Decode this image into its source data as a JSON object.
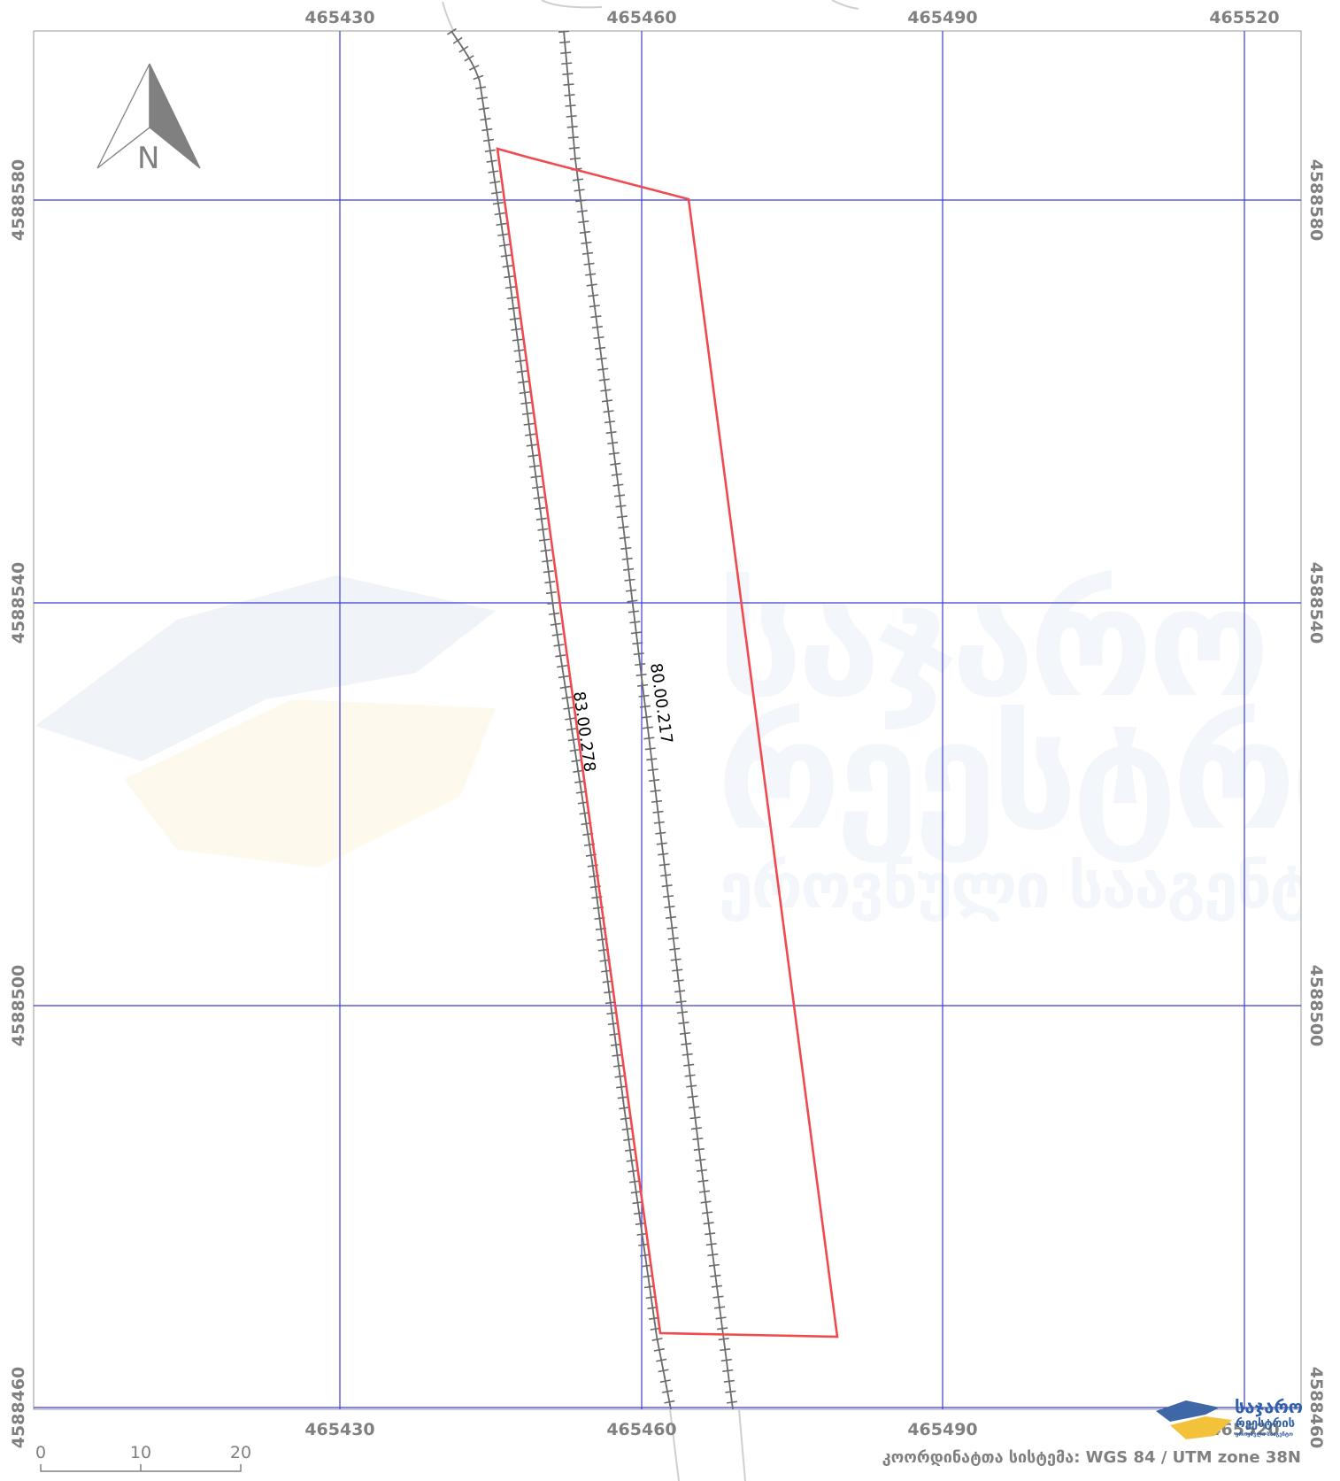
{
  "map": {
    "coordinate_system_text": "კოორდინატთა სისტემა: WGS 84 / UTM zone 38N",
    "x_labels": [
      "465430",
      "465460",
      "465490",
      "465520"
    ],
    "y_labels": [
      "4588580",
      "4588540",
      "4588500",
      "4588460"
    ],
    "parcels": [
      {
        "id": "83.00.278"
      },
      {
        "id": "80.00.217"
      }
    ],
    "north_arrow": {
      "label": "N",
      "icon": "north-arrow-icon"
    },
    "scale_bar": {
      "labels": [
        "0",
        "10",
        "20"
      ]
    },
    "watermark": {
      "lines": [
        "საჯარო",
        "რეესტრის",
        "ეროვნული სააგენტო"
      ]
    },
    "logo": {
      "lines": [
        "საჯარო",
        "რეესტრის",
        "ეროვნული სააგენტო"
      ]
    },
    "colors": {
      "grid": "#3b3bdc",
      "parcel_outline": "#f04a50",
      "railway": "#6b6b6b",
      "railway_faded": "#cfcfcf",
      "text": "#808080"
    }
  }
}
